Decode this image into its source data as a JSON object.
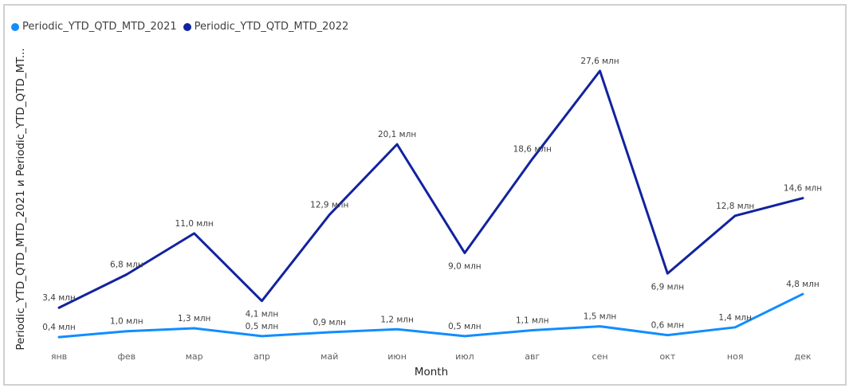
{
  "chart_data": {
    "type": "line",
    "xlabel": "Month",
    "ylabel": "Periodic_YTD_QTD_MTD_2021 и Periodic_YTD_QTD_MT...",
    "categories": [
      "янв",
      "фев",
      "мар",
      "апр",
      "май",
      "июн",
      "июл",
      "авг",
      "сен",
      "окт",
      "ноя",
      "дек"
    ],
    "series": [
      {
        "name": "Periodic_YTD_QTD_MTD_2021",
        "color": "#118DFF",
        "values": [
          0.4,
          1.0,
          1.3,
          0.5,
          0.9,
          1.2,
          0.5,
          1.1,
          1.5,
          0.6,
          1.4,
          4.8
        ],
        "labels": [
          "0,4 млн",
          "1,0 млн",
          "1,3 млн",
          "0,5 млн",
          "0,9 млн",
          "1,2 млн",
          "0,5 млн",
          "1,1 млн",
          "1,5 млн",
          "0,6 млн",
          "1,4 млн",
          "4,8 млн"
        ]
      },
      {
        "name": "Periodic_YTD_QTD_MTD_2022",
        "color": "#12239E",
        "values": [
          3.4,
          6.8,
          11.0,
          4.1,
          12.9,
          20.1,
          9.0,
          18.6,
          27.6,
          6.9,
          12.8,
          14.6
        ],
        "labels": [
          "3,4 млн",
          "6,8 млн",
          "11,0 млн",
          "4,1 млн",
          "12,9 млн",
          "20,1 млн",
          "9,0 млн",
          "18,6 млн",
          "27,6 млн",
          "6,9 млн",
          "12,8 млн",
          "14,6 млн"
        ]
      }
    ],
    "legend_position": "top-left",
    "grid": false
  }
}
